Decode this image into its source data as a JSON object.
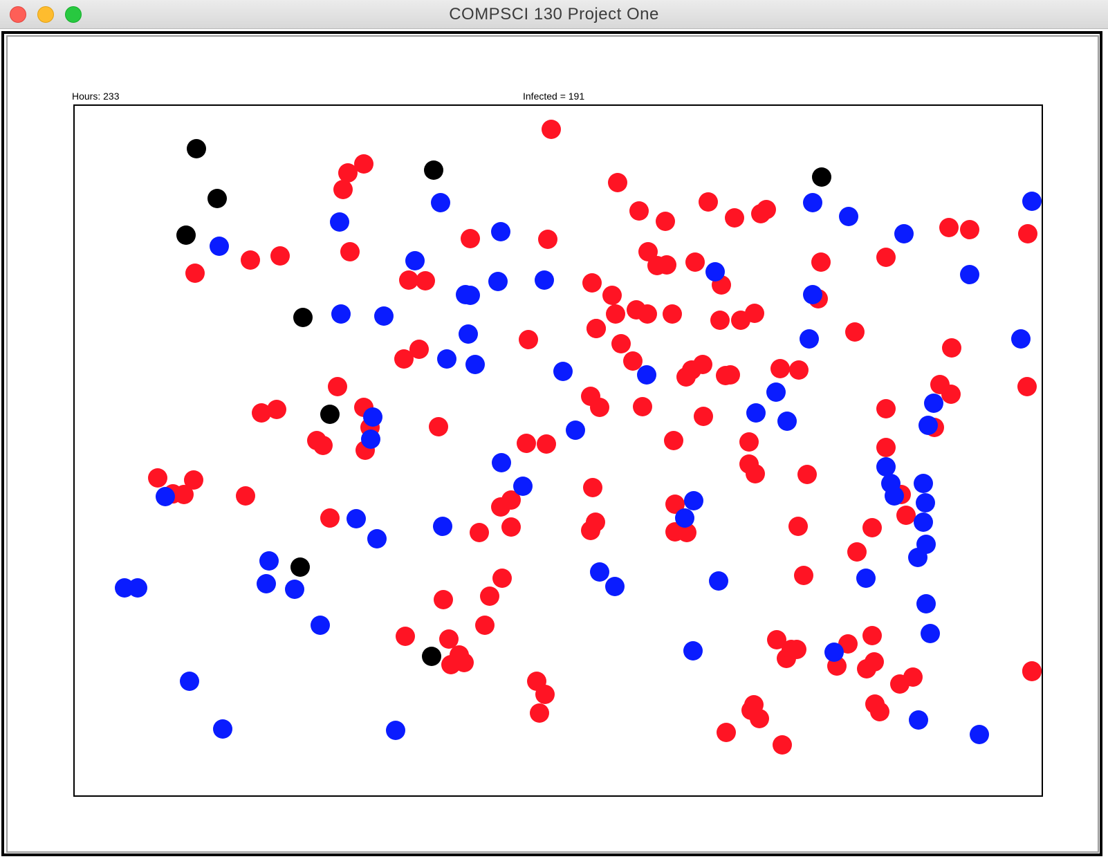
{
  "window": {
    "title": "COMPSCI 130 Project One"
  },
  "hud": {
    "hours": "Hours: 233",
    "infected": "Infected = 191"
  },
  "legend_colors": {
    "healthy": "#0a1cff",
    "infected": "#ff1424",
    "dead": "#000000"
  }
}
